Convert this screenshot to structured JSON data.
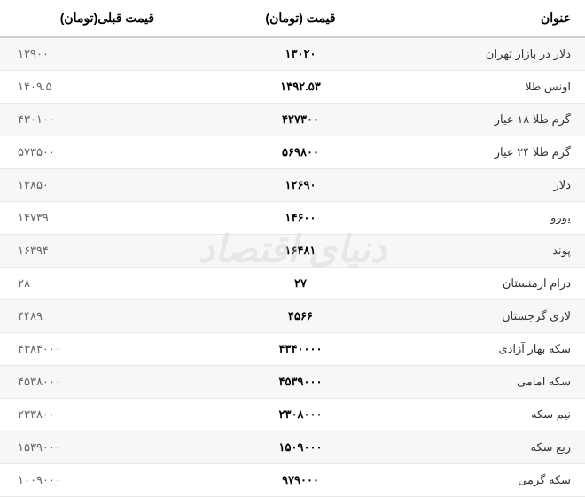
{
  "table": {
    "columns": [
      "عنوان",
      "قیمت (تومان)",
      "قیمت قبلی(تومان)"
    ],
    "rows": [
      [
        "دلار در بازار تهران",
        "۱۳۰۲۰",
        "۱۲۹۰۰"
      ],
      [
        "اونس طلا",
        "۱۳۹۲.۵۳",
        "۱۴۰۹.۵"
      ],
      [
        "گرم طلا ۱۸ عیار",
        "۴۲۷۳۰۰",
        "۴۳۰۱۰۰"
      ],
      [
        "گرم طلا ۲۴ عیار",
        "۵۶۹۸۰۰",
        "۵۷۳۵۰۰"
      ],
      [
        "دلار",
        "۱۲۶۹۰",
        "۱۲۸۵۰"
      ],
      [
        "یورو",
        "۱۴۶۰۰",
        "۱۴۷۳۹"
      ],
      [
        "پوند",
        "۱۶۴۸۱",
        "۱۶۳۹۴"
      ],
      [
        "درام ارمنستان",
        "۲۷",
        "۲۸"
      ],
      [
        "لاری گرجستان",
        "۴۵۶۶",
        "۴۴۸۹"
      ],
      [
        "سکه بهار آزادی",
        "۴۳۴۰۰۰۰",
        "۴۳۸۴۰۰۰"
      ],
      [
        "سکه امامی",
        "۴۵۳۹۰۰۰",
        "۴۵۳۸۰۰۰"
      ],
      [
        "نیم سکه",
        "۲۳۰۸۰۰۰",
        "۲۳۳۸۰۰۰"
      ],
      [
        "ربع سکه",
        "۱۵۰۹۰۰۰",
        "۱۵۳۹۰۰۰"
      ],
      [
        "سکه گرمی",
        "۹۷۹۰۰۰",
        "۱۰۰۹۰۰۰"
      ]
    ]
  },
  "watermark": "دنیای اقتصاد",
  "styling": {
    "odd_row_bg": "#f6f7f9",
    "even_row_bg": "#ffffff",
    "header_border": "#d0d0d0",
    "row_border": "#e8e8e8",
    "text_color": "#333333",
    "bold_text_color": "#000000",
    "prev_price_color": "#666666",
    "watermark_color": "#cccccc",
    "font_family": "Tahoma"
  }
}
